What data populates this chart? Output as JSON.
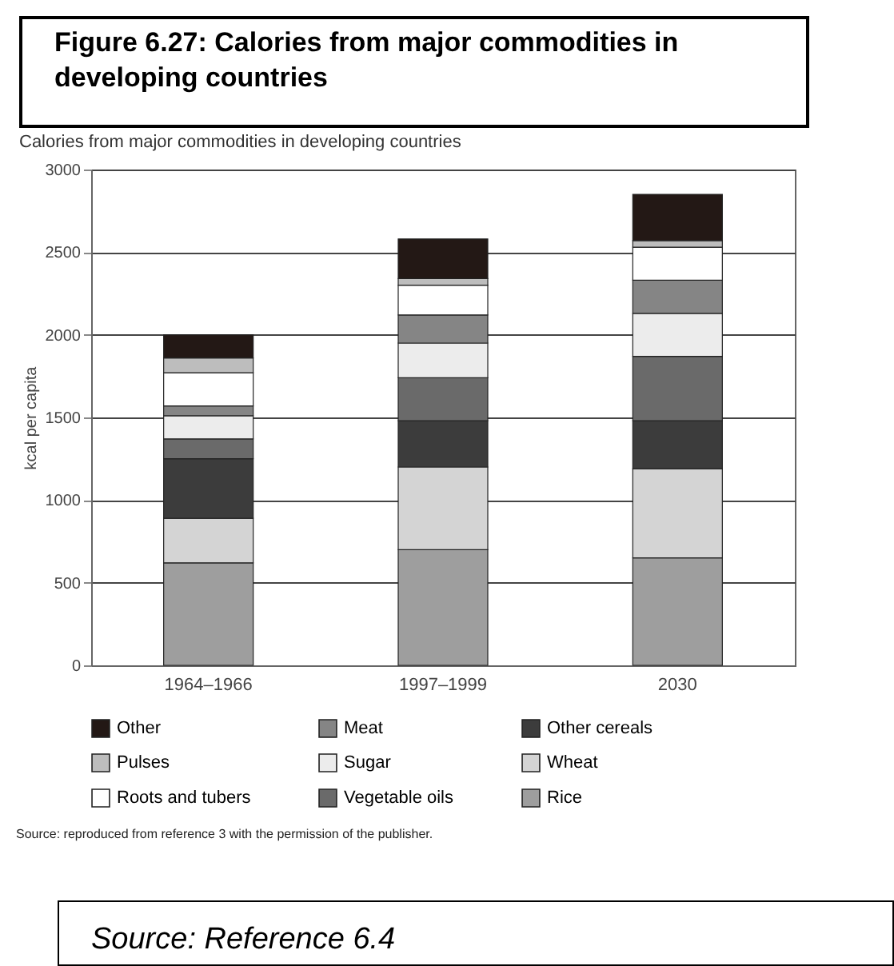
{
  "chart_data": {
    "type": "bar",
    "title": "Figure 6.27: Calories from major commodities in developing countries",
    "subtitle": "Calories from major commodities in developing countries",
    "ylabel": "kcal per capita",
    "categories": [
      "1964–1966",
      "1997–1999",
      "2030"
    ],
    "stacked": true,
    "series": [
      {
        "name": "Rice",
        "color": "#9e9e9e",
        "values": [
          620,
          700,
          650
        ]
      },
      {
        "name": "Wheat",
        "color": "#d4d4d4",
        "values": [
          270,
          500,
          540
        ]
      },
      {
        "name": "Other cereals",
        "color": "#3c3c3c",
        "values": [
          360,
          280,
          290
        ]
      },
      {
        "name": "Vegetable oils",
        "color": "#6a6a6a",
        "values": [
          120,
          260,
          390
        ]
      },
      {
        "name": "Sugar",
        "color": "#ececec",
        "values": [
          140,
          210,
          260
        ]
      },
      {
        "name": "Meat",
        "color": "#858585",
        "values": [
          60,
          170,
          200
        ]
      },
      {
        "name": "Roots and tubers",
        "color": "#ffffff",
        "values": [
          200,
          180,
          200
        ]
      },
      {
        "name": "Pulses",
        "color": "#bdbdbd",
        "values": [
          90,
          40,
          40
        ]
      },
      {
        "name": "Other",
        "color": "#231815",
        "values": [
          140,
          240,
          280
        ]
      }
    ],
    "ylim": [
      0,
      3000
    ],
    "yticks": [
      0,
      500,
      1000,
      1500,
      2000,
      2500,
      3000
    ],
    "grid": "y",
    "legend": "bottom",
    "annotations": [
      "Source: reproduced from reference 3 with the permission of the publisher.",
      "Source: Reference 6.4"
    ]
  }
}
